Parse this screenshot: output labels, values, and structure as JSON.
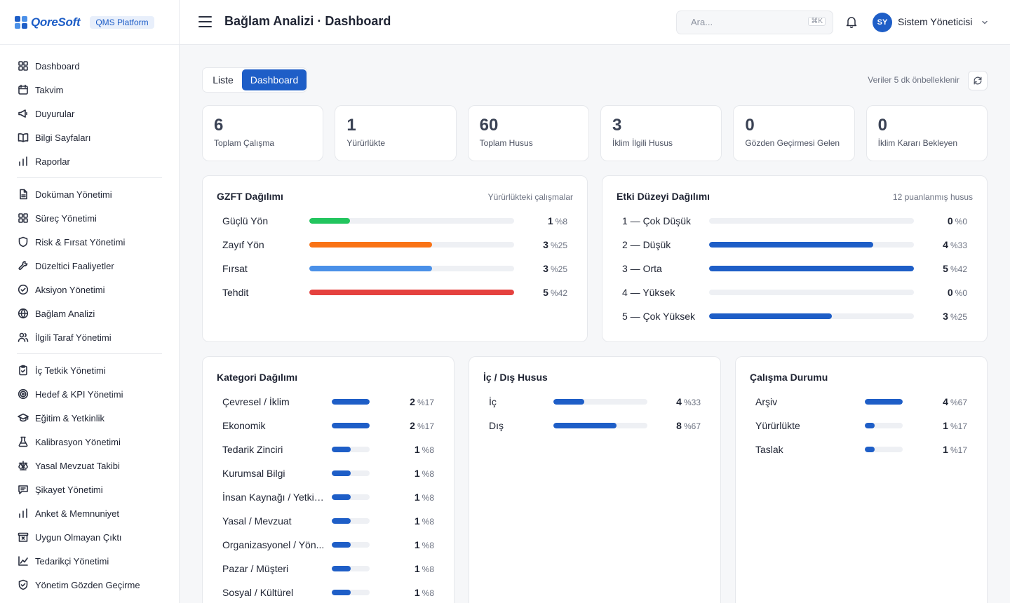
{
  "brand": {
    "logo": "QoreSoft",
    "badge": "QMS Platform"
  },
  "nav": [
    [
      {
        "label": "Dashboard",
        "icon": "grid-icon"
      },
      {
        "label": "Takvim",
        "icon": "calendar-icon"
      },
      {
        "label": "Duyurular",
        "icon": "megaphone-icon"
      },
      {
        "label": "Bilgi Sayfaları",
        "icon": "book-icon"
      },
      {
        "label": "Raporlar",
        "icon": "bar-chart-icon"
      }
    ],
    [
      {
        "label": "Doküman Yönetimi",
        "icon": "file-icon"
      },
      {
        "label": "Süreç Yönetimi",
        "icon": "grid-icon"
      },
      {
        "label": "Risk & Fırsat Yönetimi",
        "icon": "shield-icon"
      },
      {
        "label": "Düzeltici Faaliyetler",
        "icon": "wrench-icon"
      },
      {
        "label": "Aksiyon Yönetimi",
        "icon": "check-circle-icon"
      },
      {
        "label": "Bağlam Analizi",
        "icon": "globe-icon"
      },
      {
        "label": "İlgili Taraf Yönetimi",
        "icon": "users-icon"
      }
    ],
    [
      {
        "label": "İç Tetkik Yönetimi",
        "icon": "clipboard-icon"
      },
      {
        "label": "Hedef & KPI Yönetimi",
        "icon": "target-icon"
      },
      {
        "label": "Eğitim & Yetkinlik",
        "icon": "graduation-cap-icon"
      },
      {
        "label": "Kalibrasyon Yönetimi",
        "icon": "flask-icon"
      },
      {
        "label": "Yasal Mevzuat Takibi",
        "icon": "scale-icon"
      },
      {
        "label": "Şikayet Yönetimi",
        "icon": "message-icon"
      },
      {
        "label": "Anket & Memnuniyet",
        "icon": "bar-chart-icon"
      },
      {
        "label": "Uygun Olmayan Çıktı",
        "icon": "archive-x-icon"
      },
      {
        "label": "Tedarikçi Yönetimi",
        "icon": "line-chart-icon"
      },
      {
        "label": "Yönetim Gözden Geçirme",
        "icon": "shield-check-icon"
      }
    ]
  ],
  "header": {
    "title": "Bağlam Analizi · Dashboard",
    "search_placeholder": "Ara...",
    "search_kbd": "⌘K",
    "avatar_initials": "SY",
    "user_name": "Sistem Yöneticisi"
  },
  "view_toggle": {
    "list": "Liste",
    "dashboard": "Dashboard",
    "active": "dashboard"
  },
  "cache_note": "Veriler 5 dk önbelleklenir",
  "stats": [
    {
      "value": "6",
      "label": "Toplam Çalışma"
    },
    {
      "value": "1",
      "label": "Yürürlükte"
    },
    {
      "value": "60",
      "label": "Toplam Husus"
    },
    {
      "value": "3",
      "label": "İklim İlgili Husus"
    },
    {
      "value": "0",
      "label": "Gözden Geçirmesi Gelen"
    },
    {
      "value": "0",
      "label": "İklim Kararı Bekleyen"
    }
  ],
  "cards": {
    "gzft": {
      "title": "GZFT Dağılımı",
      "subtitle": "Yürürlükteki çalışmalar",
      "rows": [
        {
          "label": "Güçlü Yön",
          "count": "1",
          "pct": "%8",
          "fill": 0.2,
          "color": "#22c55e"
        },
        {
          "label": "Zayıf Yön",
          "count": "3",
          "pct": "%25",
          "fill": 0.6,
          "color": "#f97316"
        },
        {
          "label": "Fırsat",
          "count": "3",
          "pct": "%25",
          "fill": 0.6,
          "color": "#4a90e8"
        },
        {
          "label": "Tehdit",
          "count": "5",
          "pct": "%42",
          "fill": 1.0,
          "color": "#e5413e"
        }
      ]
    },
    "etki": {
      "title": "Etki Düzeyi Dağılımı",
      "subtitle": "12 puanlanmış husus",
      "rows": [
        {
          "label": "1 — Çok Düşük",
          "count": "0",
          "pct": "%0",
          "fill": 0
        },
        {
          "label": "2 — Düşük",
          "count": "4",
          "pct": "%33",
          "fill": 0.8
        },
        {
          "label": "3 — Orta",
          "count": "5",
          "pct": "%42",
          "fill": 1.0
        },
        {
          "label": "4 — Yüksek",
          "count": "0",
          "pct": "%0",
          "fill": 0
        },
        {
          "label": "5 — Çok Yüksek",
          "count": "3",
          "pct": "%25",
          "fill": 0.6
        }
      ]
    },
    "kategori": {
      "title": "Kategori Dağılımı",
      "rows": [
        {
          "label": "Çevresel / İklim",
          "count": "2",
          "pct": "%17",
          "fill": 1.0
        },
        {
          "label": "Ekonomik",
          "count": "2",
          "pct": "%17",
          "fill": 1.0
        },
        {
          "label": "Tedarik Zinciri",
          "count": "1",
          "pct": "%8",
          "fill": 0.5
        },
        {
          "label": "Kurumsal Bilgi",
          "count": "1",
          "pct": "%8",
          "fill": 0.5
        },
        {
          "label": "İnsan Kaynağı / Yetkin...",
          "count": "1",
          "pct": "%8",
          "fill": 0.5
        },
        {
          "label": "Yasal / Mevzuat",
          "count": "1",
          "pct": "%8",
          "fill": 0.5
        },
        {
          "label": "Organizasyonel / Yön...",
          "count": "1",
          "pct": "%8",
          "fill": 0.5
        },
        {
          "label": "Pazar / Müşteri",
          "count": "1",
          "pct": "%8",
          "fill": 0.5
        },
        {
          "label": "Sosyal / Kültürel",
          "count": "1",
          "pct": "%8",
          "fill": 0.5
        }
      ]
    },
    "icdis": {
      "title": "İç / Dış Husus",
      "rows": [
        {
          "label": "İç",
          "count": "4",
          "pct": "%33",
          "fill": 0.33
        },
        {
          "label": "Dış",
          "count": "8",
          "pct": "%67",
          "fill": 0.67
        }
      ]
    },
    "durum": {
      "title": "Çalışma Durumu",
      "rows": [
        {
          "label": "Arşiv",
          "count": "4",
          "pct": "%67",
          "fill": 1.0
        },
        {
          "label": "Yürürlükte",
          "count": "1",
          "pct": "%17",
          "fill": 0.25
        },
        {
          "label": "Taslak",
          "count": "1",
          "pct": "%17",
          "fill": 0.25
        }
      ]
    }
  },
  "colors": {
    "accent": "#1e5ec7",
    "bar_default": "#1e5ec7"
  }
}
